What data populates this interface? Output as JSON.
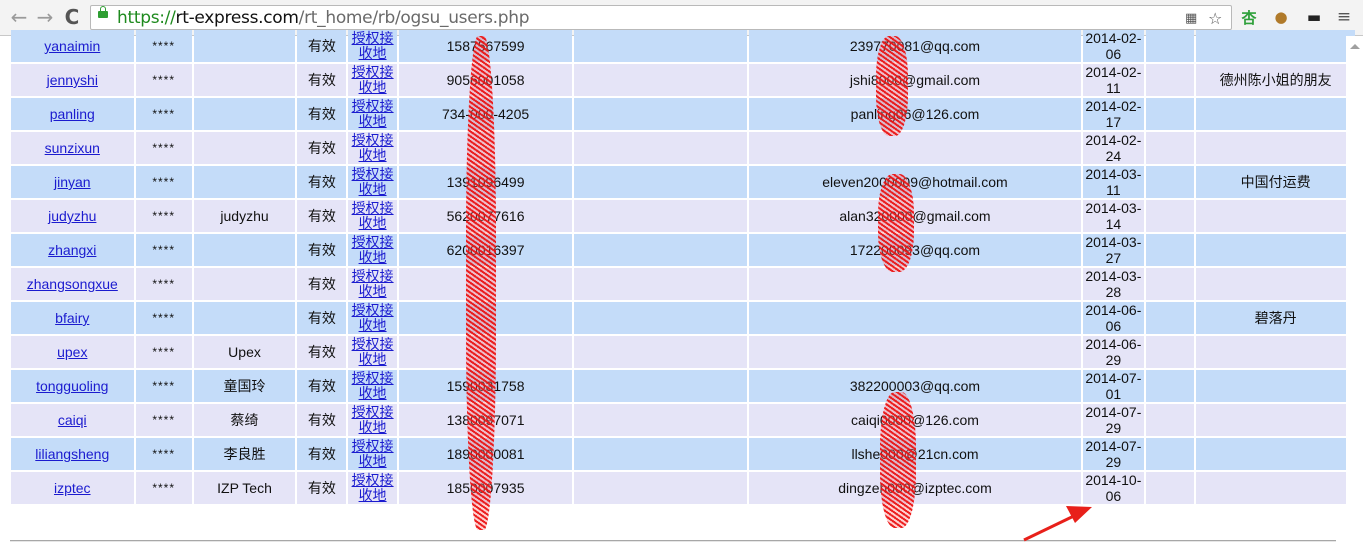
{
  "browser": {
    "url_scheme": "https://",
    "url_host": "rt-express.com",
    "url_path": "/rt_home/rb/ogsu_users.php",
    "back_glyph": "←",
    "forward_glyph": "→",
    "reload_glyph": "C"
  },
  "status_label": "有效",
  "auth_label_line1": "授权接",
  "auth_label_line2": "收地",
  "password_mask": "****",
  "rows": [
    {
      "user": "yanaimin",
      "name": "",
      "phone": "1587567599",
      "email": "239770081@qq.com",
      "date1": "2014-02-",
      "date2": "06",
      "note": ""
    },
    {
      "user": "jennyshi",
      "name": "",
      "phone": "9056001058",
      "email": "jshi8000@gmail.com",
      "date1": "2014-02-",
      "date2": "11",
      "note": "德州陈小姐的朋友"
    },
    {
      "user": "panling",
      "name": "",
      "phone": "734-000-4205",
      "email": "panling06@126.com",
      "date1": "2014-02-",
      "date2": "17",
      "note": ""
    },
    {
      "user": "sunzixun",
      "name": "",
      "phone": "",
      "email": "",
      "date1": "2014-02-",
      "date2": "24",
      "note": ""
    },
    {
      "user": "jinyan",
      "name": "",
      "phone": "1391096499",
      "email": "eleven2000009@hotmail.com",
      "date1": "2014-03-",
      "date2": "11",
      "note": "中国付运费"
    },
    {
      "user": "judyzhu",
      "name": "judyzhu",
      "phone": "5620077616",
      "email": "alan320000@gmail.com",
      "date1": "2014-03-",
      "date2": "14",
      "note": ""
    },
    {
      "user": "zhangxi",
      "name": "",
      "phone": "6200016397",
      "email": "172200093@qq.com",
      "date1": "2014-03-",
      "date2": "27",
      "note": ""
    },
    {
      "user": "zhangsongxue",
      "name": "",
      "phone": "",
      "email": "",
      "date1": "2014-03-",
      "date2": "28",
      "note": ""
    },
    {
      "user": "bfairy",
      "name": "",
      "phone": "",
      "email": "",
      "date1": "2014-06-",
      "date2": "06",
      "note": "碧落丹"
    },
    {
      "user": "upex",
      "name": "Upex",
      "phone": "",
      "email": "",
      "date1": "2014-06-",
      "date2": "29",
      "note": ""
    },
    {
      "user": "tongguoling",
      "name": "童国玲",
      "phone": "1590031758",
      "email": "382200003@qq.com",
      "date1": "2014-07-",
      "date2": "01",
      "note": ""
    },
    {
      "user": "caiqi",
      "name": "蔡绮",
      "phone": "1380097071",
      "email": "caiqi0000@126.com",
      "date1": "2014-07-",
      "date2": "29",
      "note": ""
    },
    {
      "user": "liliangsheng",
      "name": "李良胜",
      "phone": "1890000081",
      "email": "llshe000@21cn.com",
      "date1": "2014-07-",
      "date2": "29",
      "note": ""
    },
    {
      "user": "izptec",
      "name": "IZP Tech",
      "phone": "1850007935",
      "email": "dingzeh000@izptec.com",
      "date1": "2014-10-",
      "date2": "06",
      "note": ""
    }
  ],
  "colors": {
    "row_blue": "#c4dcf9",
    "row_lavender": "#e5e4f7",
    "link": "#1b1bcf",
    "redaction": "#e81414"
  }
}
